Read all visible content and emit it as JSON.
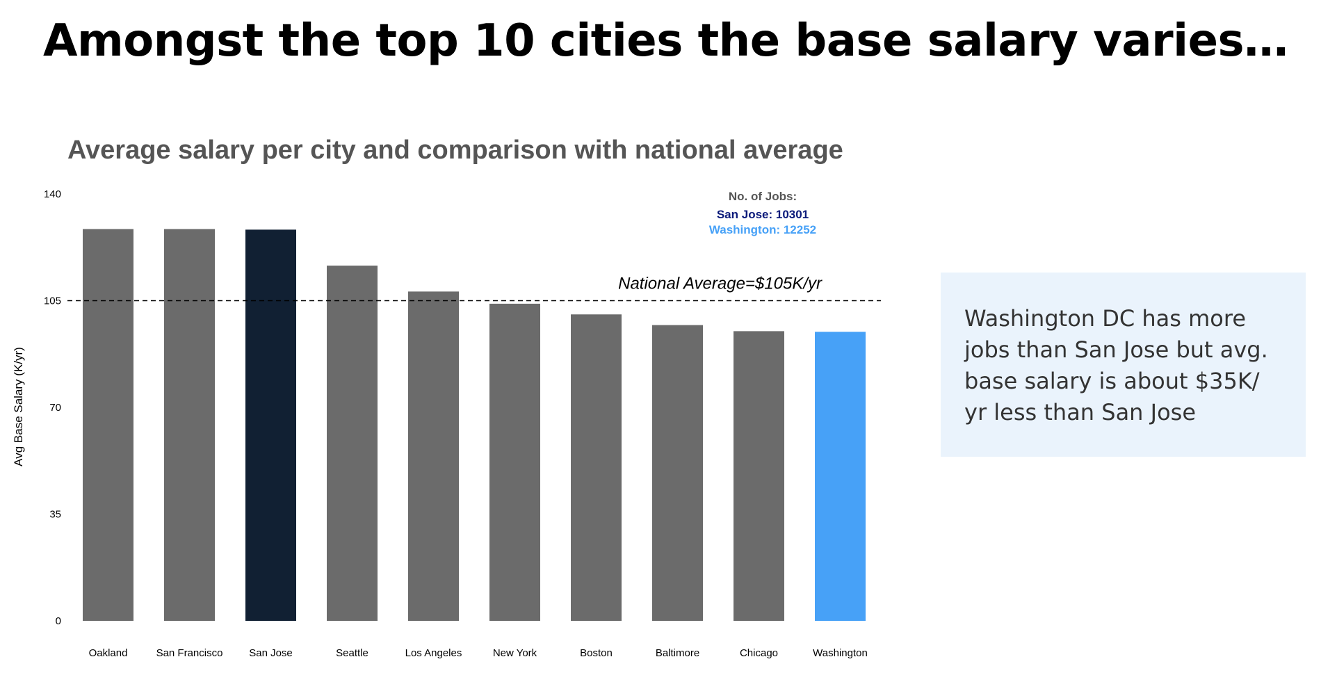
{
  "slide": {
    "title": "Amongst the top 10 cities the base salary varies…",
    "callout": "Washington DC has more jobs than San Jose but avg. base salary is about $35K/ yr less than San Jose"
  },
  "colors": {
    "default_bar": "#6b6b6b",
    "san_jose": "#112033",
    "washington": "#47a1f7",
    "jobs_san_jose_text": "#0b1a7a",
    "callout_background": "#eaf3fc"
  },
  "chart_data": {
    "type": "bar",
    "title": "Average salary per city and comparison with national average",
    "xlabel": "",
    "ylabel": "Avg Base Salary (K/yr)",
    "ylim": [
      0,
      140
    ],
    "yticks": [
      0,
      35,
      70,
      105,
      140
    ],
    "grid": false,
    "categories": [
      "Oakland",
      "San Francisco",
      "San Jose",
      "Seattle",
      "Los Angeles",
      "New York",
      "Boston",
      "Baltimore",
      "Chicago",
      "Washington"
    ],
    "values": [
      128.5,
      128.5,
      128.3,
      116.5,
      108,
      104,
      100.5,
      97,
      95,
      94.8
    ],
    "bar_colors": [
      "#6b6b6b",
      "#6b6b6b",
      "#112033",
      "#6b6b6b",
      "#6b6b6b",
      "#6b6b6b",
      "#6b6b6b",
      "#6b6b6b",
      "#6b6b6b",
      "#47a1f7"
    ],
    "reference_line": {
      "value": 105,
      "label": "National Average=$105K/yr",
      "style": "dashed"
    },
    "annotation": {
      "heading": "No. of Jobs:",
      "entries": [
        {
          "text": "San Jose: 10301",
          "color": "#0b1a7a"
        },
        {
          "text": "Washington: 12252",
          "color": "#47a1f7"
        }
      ]
    }
  }
}
